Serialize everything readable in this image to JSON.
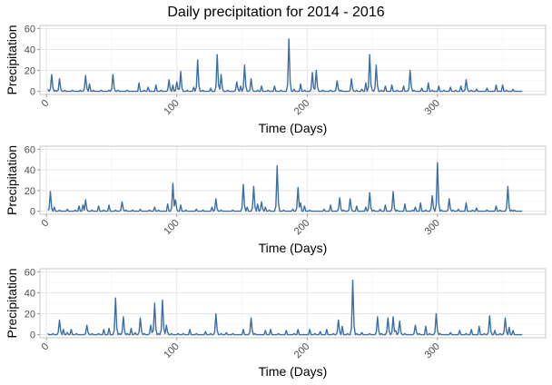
{
  "chart_data": {
    "title": "Daily precipitation for 2014 - 2016",
    "panels": [
      {
        "type": "line",
        "xlabel": "Time (Days)",
        "ylabel": "Precipitation",
        "xlim": [
          -5,
          383
        ],
        "ylim": [
          -3,
          63
        ],
        "xticks": [
          0,
          100,
          200,
          300
        ],
        "yticks": [
          0,
          20,
          40,
          60
        ],
        "grid": true,
        "peaks": [
          [
            1,
            2
          ],
          [
            4,
            16
          ],
          [
            7,
            1
          ],
          [
            10,
            12
          ],
          [
            14,
            1
          ],
          [
            20,
            1
          ],
          [
            26,
            1
          ],
          [
            30,
            15
          ],
          [
            33,
            7
          ],
          [
            36,
            1
          ],
          [
            42,
            1
          ],
          [
            48,
            1
          ],
          [
            51,
            16
          ],
          [
            55,
            1
          ],
          [
            62,
            1
          ],
          [
            71,
            8
          ],
          [
            75,
            1
          ],
          [
            78,
            4
          ],
          [
            84,
            6
          ],
          [
            88,
            1
          ],
          [
            94,
            11
          ],
          [
            97,
            6
          ],
          [
            100,
            9
          ],
          [
            103,
            19
          ],
          [
            108,
            1
          ],
          [
            113,
            4
          ],
          [
            116,
            30
          ],
          [
            120,
            1
          ],
          [
            126,
            3
          ],
          [
            131,
            35
          ],
          [
            134,
            16
          ],
          [
            139,
            1
          ],
          [
            146,
            9
          ],
          [
            149,
            5
          ],
          [
            152,
            25
          ],
          [
            157,
            12
          ],
          [
            162,
            1
          ],
          [
            165,
            5
          ],
          [
            170,
            1
          ],
          [
            175,
            5
          ],
          [
            180,
            1
          ],
          [
            186,
            50
          ],
          [
            190,
            2
          ],
          [
            195,
            7
          ],
          [
            198,
            1
          ],
          [
            204,
            18
          ],
          [
            207,
            20
          ],
          [
            212,
            1
          ],
          [
            218,
            1
          ],
          [
            223,
            10
          ],
          [
            226,
            1
          ],
          [
            234,
            12
          ],
          [
            238,
            1
          ],
          [
            242,
            2
          ],
          [
            245,
            8
          ],
          [
            248,
            35
          ],
          [
            250,
            1
          ],
          [
            253,
            25
          ],
          [
            257,
            1
          ],
          [
            260,
            5
          ],
          [
            265,
            6
          ],
          [
            269,
            1
          ],
          [
            274,
            5
          ],
          [
            279,
            20
          ],
          [
            282,
            1
          ],
          [
            288,
            3
          ],
          [
            293,
            8
          ],
          [
            296,
            1
          ],
          [
            301,
            5
          ],
          [
            305,
            1
          ],
          [
            310,
            4
          ],
          [
            314,
            1
          ],
          [
            318,
            5
          ],
          [
            322,
            11
          ],
          [
            326,
            1
          ],
          [
            330,
            2
          ],
          [
            338,
            3
          ],
          [
            345,
            6
          ],
          [
            350,
            6
          ],
          [
            353,
            1
          ],
          [
            358,
            2
          ]
        ]
      },
      {
        "type": "line",
        "xlabel": "Time (Days)",
        "ylabel": "Precipitation",
        "xlim": [
          -5,
          383
        ],
        "ylim": [
          -3,
          63
        ],
        "xticks": [
          0,
          100,
          200,
          300
        ],
        "yticks": [
          0,
          20,
          40,
          60
        ],
        "grid": true,
        "peaks": [
          [
            1,
            1
          ],
          [
            3,
            19
          ],
          [
            6,
            4
          ],
          [
            10,
            1
          ],
          [
            16,
            2
          ],
          [
            22,
            1
          ],
          [
            25,
            5
          ],
          [
            28,
            6
          ],
          [
            30,
            11
          ],
          [
            35,
            1
          ],
          [
            40,
            5
          ],
          [
            44,
            1
          ],
          [
            48,
            6
          ],
          [
            53,
            1
          ],
          [
            58,
            9
          ],
          [
            61,
            1
          ],
          [
            66,
            1
          ],
          [
            72,
            2
          ],
          [
            79,
            1
          ],
          [
            83,
            4
          ],
          [
            86,
            1
          ],
          [
            93,
            7
          ],
          [
            97,
            27
          ],
          [
            99,
            11
          ],
          [
            103,
            6
          ],
          [
            107,
            1
          ],
          [
            115,
            2
          ],
          [
            120,
            1
          ],
          [
            127,
            4
          ],
          [
            130,
            12
          ],
          [
            134,
            1
          ],
          [
            143,
            1
          ],
          [
            151,
            26
          ],
          [
            154,
            4
          ],
          [
            159,
            24
          ],
          [
            162,
            7
          ],
          [
            165,
            9
          ],
          [
            168,
            4
          ],
          [
            171,
            1
          ],
          [
            177,
            44
          ],
          [
            182,
            1
          ],
          [
            189,
            2
          ],
          [
            193,
            23
          ],
          [
            195,
            8
          ],
          [
            198,
            5
          ],
          [
            202,
            1
          ],
          [
            213,
            2
          ],
          [
            218,
            6
          ],
          [
            225,
            13
          ],
          [
            228,
            1
          ],
          [
            233,
            12
          ],
          [
            238,
            5
          ],
          [
            245,
            4
          ],
          [
            248,
            18
          ],
          [
            251,
            1
          ],
          [
            256,
            2
          ],
          [
            260,
            6
          ],
          [
            266,
            19
          ],
          [
            269,
            1
          ],
          [
            275,
            7
          ],
          [
            281,
            1
          ],
          [
            283,
            4
          ],
          [
            287,
            8
          ],
          [
            291,
            1
          ],
          [
            296,
            15
          ],
          [
            300,
            47
          ],
          [
            303,
            1
          ],
          [
            309,
            12
          ],
          [
            312,
            1
          ],
          [
            316,
            2
          ],
          [
            322,
            8
          ],
          [
            327,
            1
          ],
          [
            330,
            3
          ],
          [
            338,
            1
          ],
          [
            345,
            5
          ],
          [
            348,
            1
          ],
          [
            354,
            24
          ],
          [
            357,
            1
          ],
          [
            359,
            1
          ]
        ]
      },
      {
        "type": "line",
        "xlabel": "Time (Days)",
        "ylabel": "Precipitation",
        "xlim": [
          -5,
          383
        ],
        "ylim": [
          -3,
          63
        ],
        "xticks": [
          0,
          100,
          200,
          300
        ],
        "yticks": [
          0,
          20,
          40,
          60
        ],
        "grid": true,
        "peaks": [
          [
            1,
            1
          ],
          [
            5,
            1
          ],
          [
            10,
            14
          ],
          [
            13,
            5
          ],
          [
            16,
            2
          ],
          [
            19,
            5
          ],
          [
            23,
            1
          ],
          [
            31,
            9
          ],
          [
            35,
            1
          ],
          [
            40,
            1
          ],
          [
            44,
            5
          ],
          [
            48,
            6
          ],
          [
            53,
            35
          ],
          [
            56,
            1
          ],
          [
            59,
            17
          ],
          [
            62,
            1
          ],
          [
            65,
            6
          ],
          [
            68,
            2
          ],
          [
            72,
            16
          ],
          [
            75,
            1
          ],
          [
            80,
            9
          ],
          [
            83,
            30
          ],
          [
            86,
            1
          ],
          [
            89,
            33
          ],
          [
            92,
            9
          ],
          [
            96,
            1
          ],
          [
            101,
            1
          ],
          [
            105,
            1
          ],
          [
            110,
            5
          ],
          [
            115,
            1
          ],
          [
            122,
            3
          ],
          [
            126,
            1
          ],
          [
            130,
            20
          ],
          [
            134,
            1
          ],
          [
            138,
            2
          ],
          [
            143,
            1
          ],
          [
            151,
            5
          ],
          [
            157,
            16
          ],
          [
            160,
            1
          ],
          [
            168,
            4
          ],
          [
            172,
            5
          ],
          [
            178,
            1
          ],
          [
            184,
            4
          ],
          [
            190,
            1
          ],
          [
            193,
            5
          ],
          [
            202,
            5
          ],
          [
            206,
            1
          ],
          [
            210,
            3
          ],
          [
            215,
            5
          ],
          [
            220,
            1
          ],
          [
            224,
            14
          ],
          [
            227,
            8
          ],
          [
            231,
            1
          ],
          [
            235,
            52
          ],
          [
            238,
            1
          ],
          [
            242,
            2
          ],
          [
            248,
            1
          ],
          [
            254,
            17
          ],
          [
            257,
            1
          ],
          [
            262,
            16
          ],
          [
            266,
            17
          ],
          [
            268,
            4
          ],
          [
            271,
            13
          ],
          [
            275,
            1
          ],
          [
            283,
            9
          ],
          [
            286,
            1
          ],
          [
            291,
            8
          ],
          [
            294,
            1
          ],
          [
            299,
            20
          ],
          [
            302,
            1
          ],
          [
            310,
            2
          ],
          [
            317,
            4
          ],
          [
            322,
            1
          ],
          [
            326,
            5
          ],
          [
            332,
            8
          ],
          [
            336,
            1
          ],
          [
            340,
            18
          ],
          [
            344,
            4
          ],
          [
            348,
            1
          ],
          [
            352,
            16
          ],
          [
            355,
            7
          ],
          [
            358,
            4
          ]
        ]
      }
    ]
  }
}
